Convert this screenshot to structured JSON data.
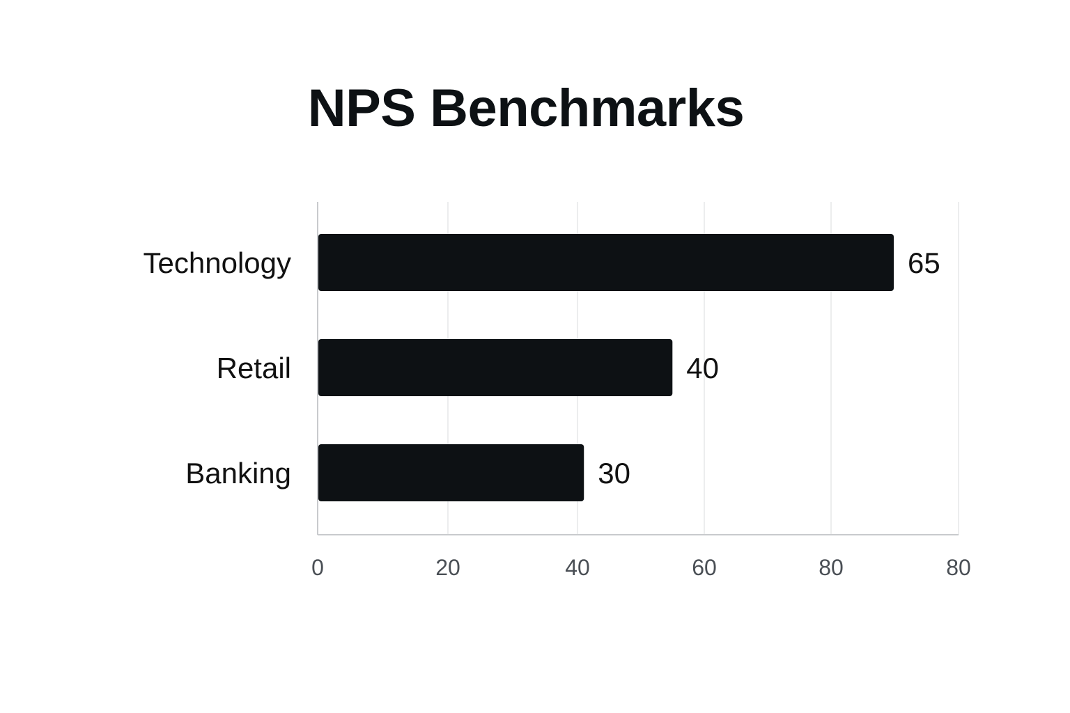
{
  "chart_data": {
    "type": "bar",
    "orientation": "horizontal",
    "title": "NPS Benchmarks",
    "categories": [
      "Technology",
      "Retail",
      "Banking"
    ],
    "values": [
      65,
      40,
      30
    ],
    "data_labels": [
      "65",
      "40",
      "30"
    ],
    "x_tick_labels": [
      "0",
      "20",
      "40",
      "60",
      "80",
      "80"
    ],
    "xlabel": "",
    "ylabel": "",
    "grid": true,
    "legend": "none",
    "colors": {
      "bar": "#0d1114",
      "grid": "#e6e7e9",
      "axis": "#c8cacd",
      "text": "#111111",
      "tick": "#4a4f55",
      "background": "#ffffff"
    }
  }
}
